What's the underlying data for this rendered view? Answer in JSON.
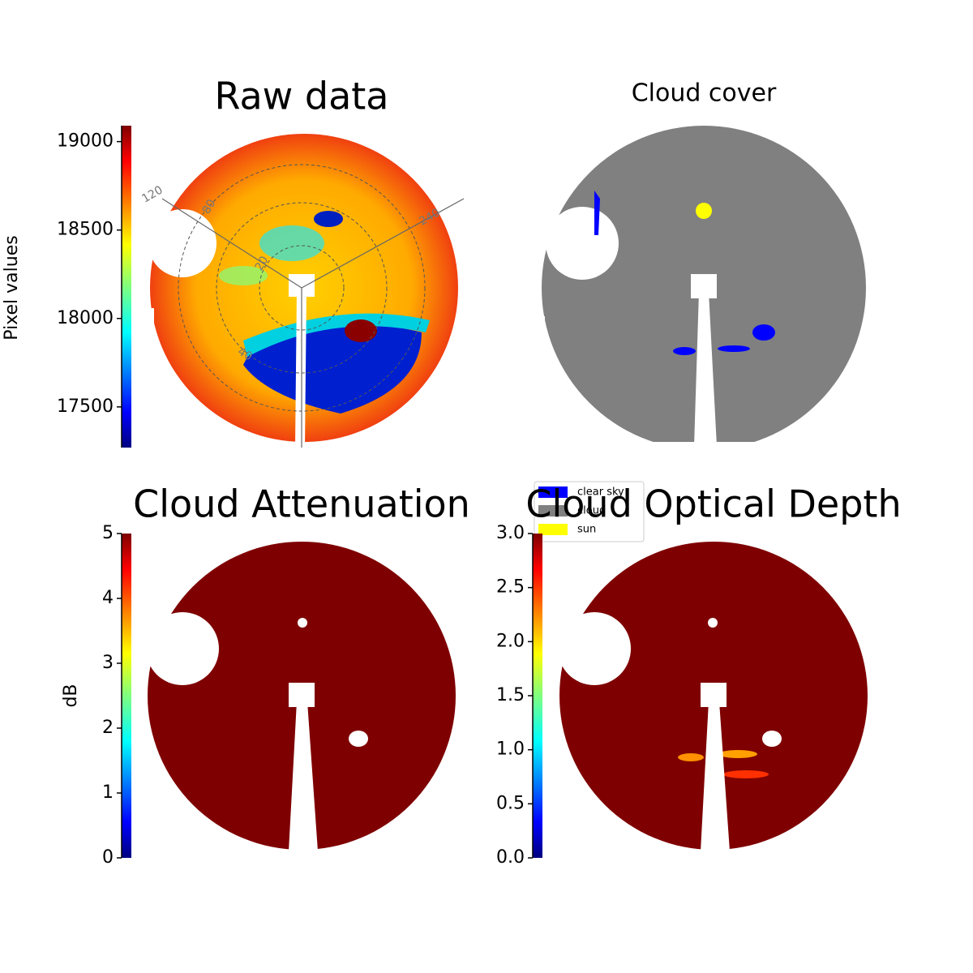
{
  "chart_data": [
    {
      "type": "image",
      "title": "Raw data",
      "annotations": [
        "120",
        "240",
        "80",
        "20",
        "40"
      ],
      "colorbar": {
        "label": "Pixel values",
        "cmap": "jet",
        "ylim": [
          17270,
          19090
        ],
        "yticks": [
          17500,
          18000,
          18500,
          19000
        ]
      }
    },
    {
      "type": "image",
      "title": "Cloud cover",
      "series": [
        {
          "name": "clear sky",
          "color": "#0000ff"
        },
        {
          "name": "cloud",
          "color": "#808080"
        },
        {
          "name": "sun",
          "color": "#ffff00"
        }
      ]
    },
    {
      "type": "image",
      "title": "Cloud Attenuation",
      "colorbar": {
        "label": "dB",
        "cmap": "jet",
        "ylim": [
          0,
          5
        ],
        "yticks": [
          0,
          1,
          2,
          3,
          4,
          5
        ]
      }
    },
    {
      "type": "image",
      "title": "Cloud Optical Depth",
      "colorbar": {
        "cmap": "jet",
        "ylim": [
          0,
          3
        ],
        "yticks": [
          {
            "value": 0,
            "label": "0.0"
          },
          {
            "value": 0.5,
            "label": "0.5"
          },
          {
            "value": 1,
            "label": "1.0"
          },
          {
            "value": 1.5,
            "label": "1.5"
          },
          {
            "value": 2,
            "label": "2.0"
          },
          {
            "value": 2.5,
            "label": "2.5"
          },
          {
            "value": 3,
            "label": "3.0"
          }
        ]
      }
    }
  ]
}
